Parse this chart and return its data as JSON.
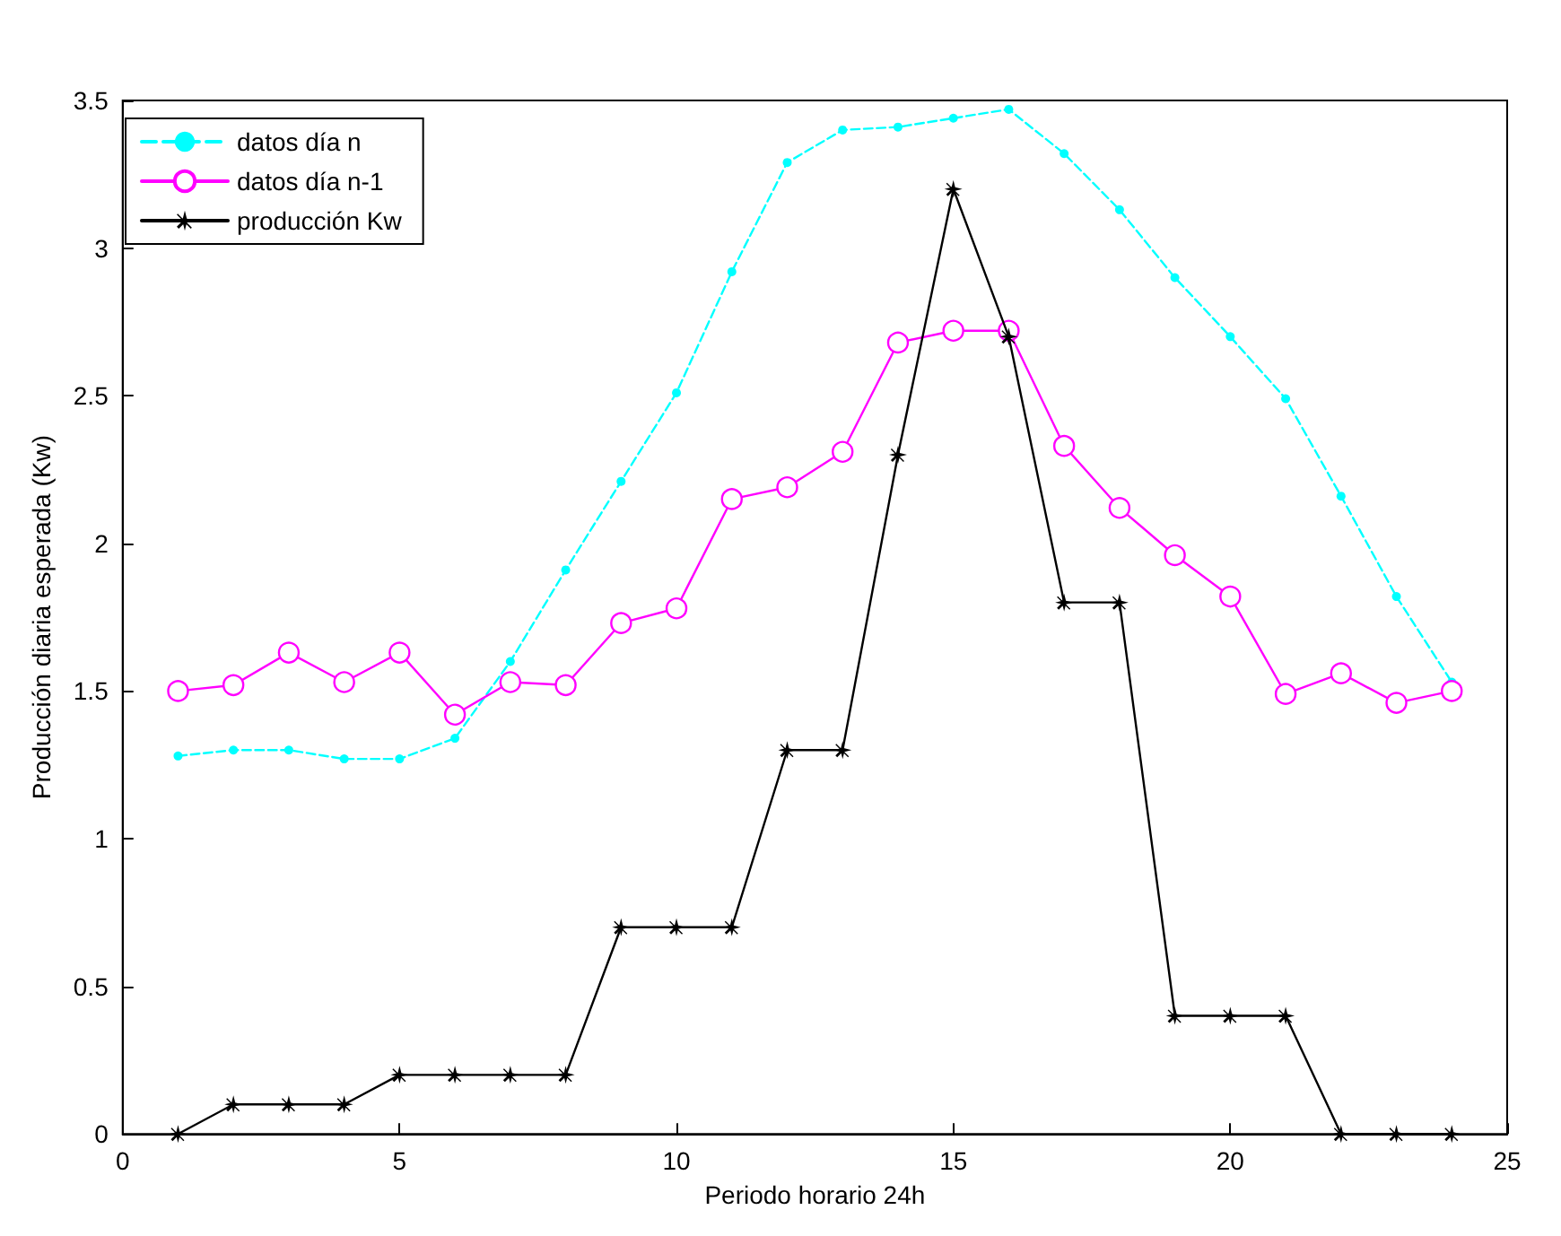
{
  "chart_data": {
    "type": "line",
    "xlabel": "Periodo horario 24h",
    "ylabel": "Producción diaria esperada (Kw)",
    "x": [
      1,
      2,
      3,
      4,
      5,
      6,
      7,
      8,
      9,
      10,
      11,
      12,
      13,
      14,
      15,
      16,
      17,
      18,
      19,
      20,
      21,
      22,
      23,
      24
    ],
    "series": [
      {
        "name": "datos día n",
        "color": "#00ffff",
        "marker": "circle",
        "line_style": "dashed",
        "values": [
          1.28,
          1.3,
          1.3,
          1.27,
          1.27,
          1.34,
          1.6,
          1.91,
          2.21,
          2.51,
          2.92,
          3.29,
          3.4,
          3.41,
          3.44,
          3.47,
          3.32,
          3.13,
          2.9,
          2.7,
          2.49,
          2.16,
          1.82,
          1.53
        ]
      },
      {
        "name": "datos día n-1",
        "color": "#ff00ff",
        "marker": "circle",
        "line_style": "solid",
        "values": [
          1.5,
          1.52,
          1.63,
          1.53,
          1.63,
          1.42,
          1.53,
          1.52,
          1.73,
          1.78,
          2.15,
          2.19,
          2.31,
          2.68,
          2.72,
          2.72,
          2.33,
          2.12,
          1.96,
          1.82,
          1.49,
          1.56,
          1.46,
          1.5
        ]
      },
      {
        "name": "producción Kw",
        "color": "#000000",
        "marker": "star",
        "line_style": "solid",
        "values": [
          0,
          0.1,
          0.1,
          0.1,
          0.2,
          0.2,
          0.2,
          0.2,
          0.7,
          0.7,
          0.7,
          1.3,
          1.3,
          2.3,
          3.2,
          2.7,
          1.8,
          1.8,
          0.4,
          0.4,
          0.4,
          0,
          0,
          0
        ]
      }
    ],
    "xlim": [
      0,
      25
    ],
    "xticks": [
      0,
      5,
      10,
      15,
      20,
      25
    ],
    "ylim": [
      0,
      3.5
    ],
    "yticks": [
      0,
      0.5,
      1,
      1.5,
      2,
      2.5,
      3,
      3.5
    ],
    "grid": false,
    "legend": "top left"
  }
}
